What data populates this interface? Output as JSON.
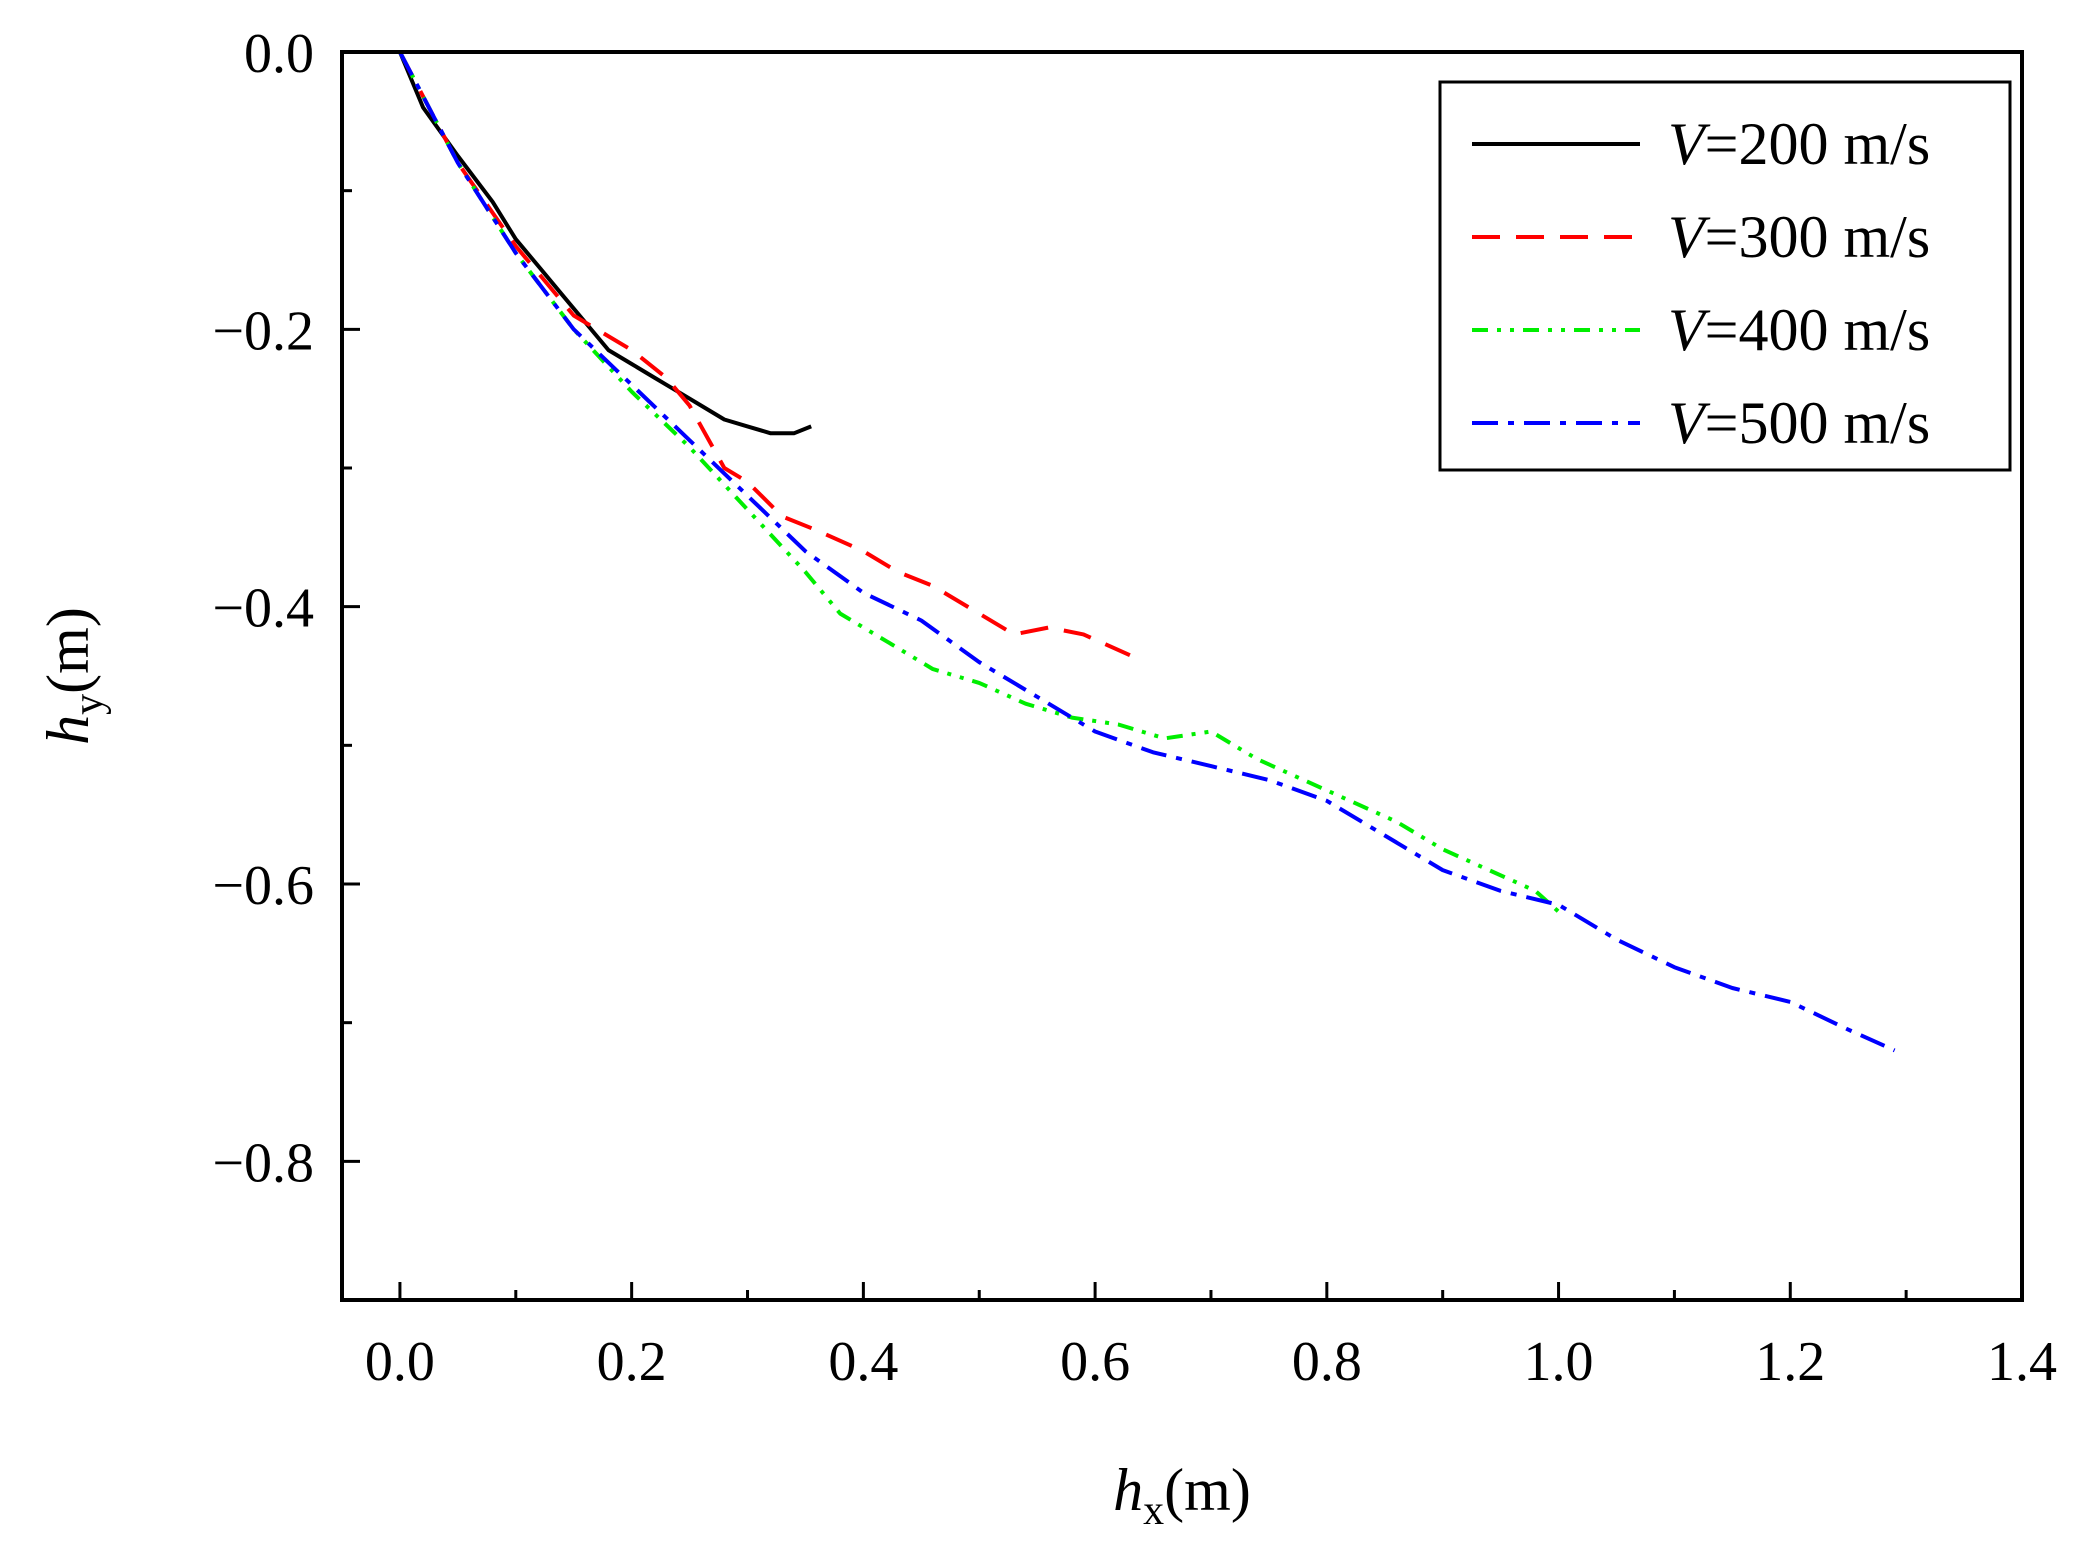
{
  "chart_data": {
    "type": "line",
    "title": "",
    "xlabel": {
      "var": "h",
      "sub": "x",
      "unit": "(m)"
    },
    "ylabel": {
      "var": "h",
      "sub": "y",
      "unit": "(m)"
    },
    "xlim": [
      -0.05,
      1.4
    ],
    "ylim": [
      -0.9,
      0.0
    ],
    "x_ticks": [
      0.0,
      0.2,
      0.4,
      0.6,
      0.8,
      1.0,
      1.2,
      1.4
    ],
    "x_tick_labels": [
      "0.0",
      "0.2",
      "0.4",
      "0.6",
      "0.8",
      "1.0",
      "1.2",
      "1.4"
    ],
    "y_ticks": [
      0.0,
      -0.2,
      -0.4,
      -0.6,
      -0.8
    ],
    "y_tick_labels": [
      "0.0",
      "−0.2",
      "−0.4",
      "−0.6",
      "−0.8"
    ],
    "grid": false,
    "legend_position": "top-right",
    "series": [
      {
        "name": "V=200 m/s",
        "var": "V",
        "eq": "=200 m/s",
        "color": "#000000",
        "dash": "solid",
        "x": [
          0.0,
          0.02,
          0.05,
          0.08,
          0.1,
          0.12,
          0.14,
          0.16,
          0.18,
          0.2,
          0.22,
          0.24,
          0.26,
          0.28,
          0.3,
          0.32,
          0.34,
          0.355
        ],
        "y": [
          0.0,
          -0.04,
          -0.075,
          -0.108,
          -0.135,
          -0.155,
          -0.175,
          -0.195,
          -0.215,
          -0.225,
          -0.235,
          -0.245,
          -0.255,
          -0.265,
          -0.27,
          -0.275,
          -0.275,
          -0.27
        ]
      },
      {
        "name": "V=300 m/s",
        "var": "V",
        "eq": "=300 m/s",
        "color": "#ff0000",
        "dash": "dashed",
        "x": [
          0.0,
          0.05,
          0.1,
          0.15,
          0.2,
          0.23,
          0.25,
          0.28,
          0.3,
          0.33,
          0.36,
          0.4,
          0.43,
          0.46,
          0.5,
          0.53,
          0.56,
          0.59,
          0.63
        ],
        "y": [
          0.0,
          -0.08,
          -0.14,
          -0.19,
          -0.215,
          -0.235,
          -0.255,
          -0.3,
          -0.31,
          -0.335,
          -0.345,
          -0.36,
          -0.375,
          -0.385,
          -0.405,
          -0.42,
          -0.415,
          -0.42,
          -0.435
        ]
      },
      {
        "name": "V=400 m/s",
        "var": "V",
        "eq": "=400 m/s",
        "color": "#00ee00",
        "dash": "dash-dot-dot",
        "x": [
          0.0,
          0.05,
          0.1,
          0.15,
          0.2,
          0.25,
          0.3,
          0.35,
          0.38,
          0.42,
          0.46,
          0.5,
          0.54,
          0.58,
          0.62,
          0.66,
          0.7,
          0.74,
          0.78,
          0.82,
          0.86,
          0.9,
          0.94,
          0.98,
          1.0
        ],
        "y": [
          0.0,
          -0.08,
          -0.145,
          -0.2,
          -0.245,
          -0.285,
          -0.33,
          -0.375,
          -0.405,
          -0.425,
          -0.445,
          -0.455,
          -0.47,
          -0.48,
          -0.485,
          -0.495,
          -0.49,
          -0.51,
          -0.525,
          -0.54,
          -0.555,
          -0.575,
          -0.59,
          -0.605,
          -0.62
        ]
      },
      {
        "name": "V=500 m/s",
        "var": "V",
        "eq": "=500 m/s",
        "color": "#0000ff",
        "dash": "dash-dot",
        "x": [
          0.0,
          0.05,
          0.1,
          0.15,
          0.2,
          0.25,
          0.3,
          0.35,
          0.4,
          0.45,
          0.5,
          0.55,
          0.6,
          0.65,
          0.7,
          0.75,
          0.8,
          0.85,
          0.9,
          0.95,
          1.0,
          1.05,
          1.1,
          1.15,
          1.2,
          1.25,
          1.29
        ],
        "y": [
          0.0,
          -0.08,
          -0.145,
          -0.2,
          -0.24,
          -0.28,
          -0.32,
          -0.36,
          -0.39,
          -0.41,
          -0.44,
          -0.465,
          -0.49,
          -0.505,
          -0.515,
          -0.525,
          -0.54,
          -0.565,
          -0.59,
          -0.605,
          -0.615,
          -0.64,
          -0.66,
          -0.675,
          -0.685,
          -0.705,
          -0.72
        ]
      }
    ]
  }
}
